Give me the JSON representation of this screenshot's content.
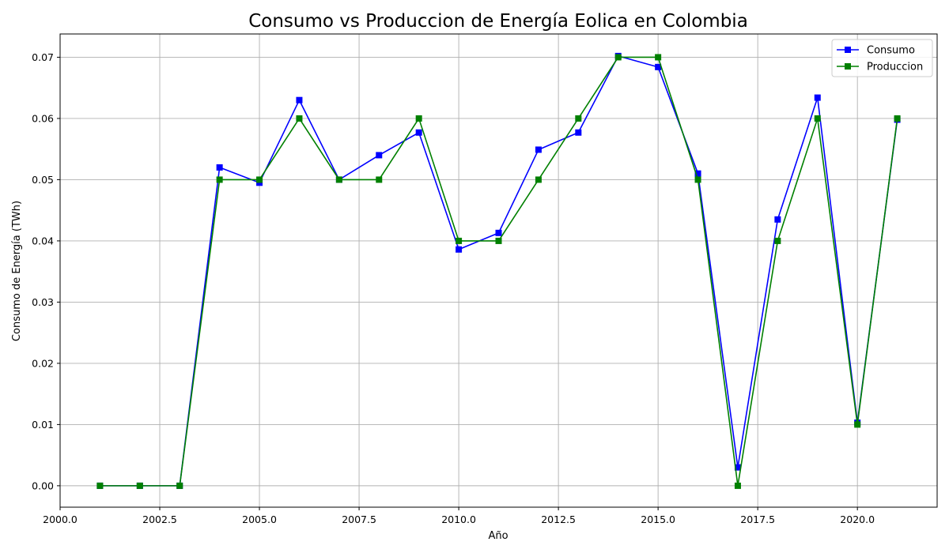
{
  "chart_data": {
    "type": "line",
    "title": "Consumo vs Produccion de Energía Eolica en Colombia",
    "xlabel": "Año",
    "ylabel": "Consumo de Energía (TWh)",
    "xlim": [
      2000.0,
      2022.0
    ],
    "ylim": [
      -0.0035,
      0.0738
    ],
    "xticks": [
      2000.0,
      2002.5,
      2005.0,
      2007.5,
      2010.0,
      2012.5,
      2015.0,
      2017.5,
      2020.0
    ],
    "xtick_labels": [
      "2000.0",
      "2002.5",
      "2005.0",
      "2007.5",
      "2010.0",
      "2012.5",
      "2015.0",
      "2017.5",
      "2020.0"
    ],
    "yticks": [
      0.0,
      0.01,
      0.02,
      0.03,
      0.04,
      0.05,
      0.06,
      0.07
    ],
    "ytick_labels": [
      "0.00",
      "0.01",
      "0.02",
      "0.03",
      "0.04",
      "0.05",
      "0.06",
      "0.07"
    ],
    "grid": true,
    "legend_position": "top-right",
    "x": [
      2001,
      2002,
      2003,
      2004,
      2005,
      2006,
      2007,
      2008,
      2009,
      2010,
      2011,
      2012,
      2013,
      2014,
      2015,
      2016,
      2017,
      2018,
      2019,
      2020,
      2021
    ],
    "series": [
      {
        "name": "Consumo",
        "color": "#0000ff",
        "marker": "square",
        "values": [
          0.0,
          0.0,
          0.0,
          0.052,
          0.0495,
          0.063,
          0.05,
          0.054,
          0.0577,
          0.0386,
          0.0413,
          0.0549,
          0.0577,
          0.0702,
          0.0684,
          0.051,
          0.003,
          0.0435,
          0.0634,
          0.0103,
          0.0598
        ]
      },
      {
        "name": "Produccion",
        "color": "#008000",
        "marker": "square",
        "values": [
          0.0,
          0.0,
          0.0,
          0.05,
          0.05,
          0.06,
          0.05,
          0.05,
          0.06,
          0.04,
          0.04,
          0.05,
          0.06,
          0.07,
          0.07,
          0.05,
          0.0,
          0.04,
          0.06,
          0.01,
          0.06
        ]
      }
    ]
  }
}
